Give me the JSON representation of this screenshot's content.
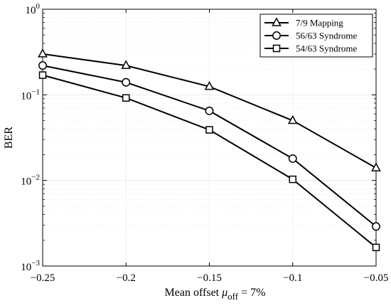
{
  "chart_data": {
    "type": "line",
    "x": [
      -0.25,
      -0.2,
      -0.15,
      -0.1,
      -0.05
    ],
    "x_tick_labels": [
      "−0.25",
      "−0.2",
      "−0.15",
      "−0.1",
      "−0.05"
    ],
    "xlim": [
      -0.25,
      -0.05
    ],
    "ylim": [
      0.001,
      1
    ],
    "yscale": "log",
    "y_ticks": [
      {
        "value": 1,
        "base": "10",
        "exp": "0"
      },
      {
        "value": 0.1,
        "base": "10",
        "exp": "−1"
      },
      {
        "value": 0.01,
        "base": "10",
        "exp": "−2"
      },
      {
        "value": 0.001,
        "base": "10",
        "exp": "−3"
      }
    ],
    "xlabel": {
      "prefix": "Mean offset ",
      "symbol": "μ",
      "subscript": "off",
      "suffix": " = 7%"
    },
    "ylabel": "BER",
    "grid": true,
    "legend_position": "top-right",
    "series": [
      {
        "name": "7/9 Mapping",
        "marker": "triangle",
        "values": [
          0.3,
          0.22,
          0.125,
          0.05,
          0.014
        ]
      },
      {
        "name": "56/63 Syndrome",
        "marker": "circle",
        "values": [
          0.22,
          0.14,
          0.065,
          0.018,
          0.0029
        ]
      },
      {
        "name": "54/63 Syndrome",
        "marker": "square",
        "values": [
          0.17,
          0.092,
          0.039,
          0.0103,
          0.00165
        ]
      }
    ],
    "line_color": "#000000"
  }
}
